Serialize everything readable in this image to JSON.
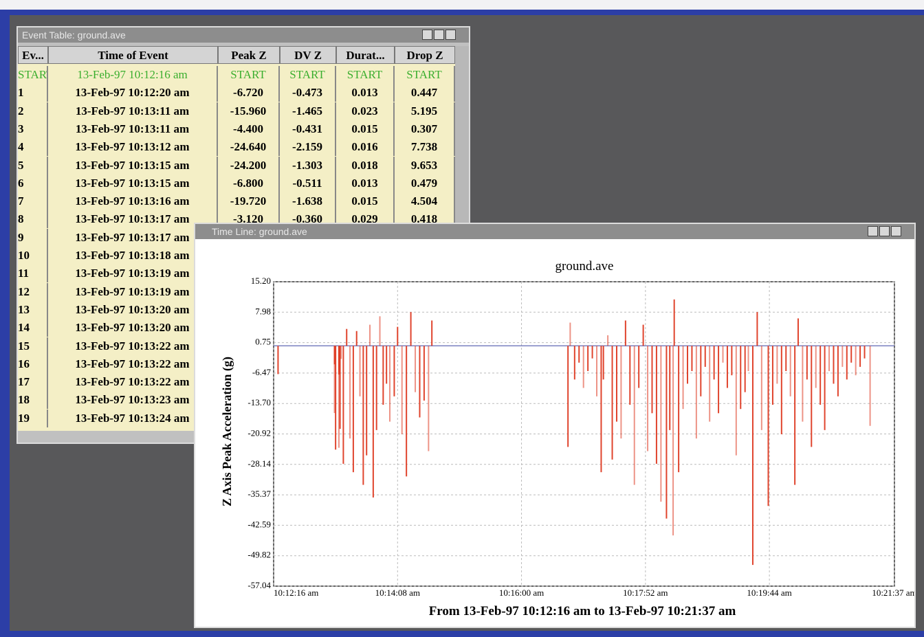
{
  "table_window": {
    "title": "Event Table: ground.ave",
    "columns": [
      "Ev...",
      "Time of Event",
      "Peak Z",
      "DV Z",
      "Durat...",
      "Drop Z"
    ],
    "rows": [
      [
        "START",
        "13-Feb-97 10:12:16 am",
        "START",
        "START",
        "START",
        "START"
      ],
      [
        "1",
        "13-Feb-97 10:12:20 am",
        "-6.720",
        "-0.473",
        "0.013",
        "0.447"
      ],
      [
        "2",
        "13-Feb-97 10:13:11 am",
        "-15.960",
        "-1.465",
        "0.023",
        "5.195"
      ],
      [
        "3",
        "13-Feb-97 10:13:11 am",
        "-4.400",
        "-0.431",
        "0.015",
        "0.307"
      ],
      [
        "4",
        "13-Feb-97 10:13:12 am",
        "-24.640",
        "-2.159",
        "0.016",
        "7.738"
      ],
      [
        "5",
        "13-Feb-97 10:13:15 am",
        "-24.200",
        "-1.303",
        "0.018",
        "9.653"
      ],
      [
        "6",
        "13-Feb-97 10:13:15 am",
        "-6.800",
        "-0.511",
        "0.013",
        "0.479"
      ],
      [
        "7",
        "13-Feb-97 10:13:16 am",
        "-19.720",
        "-1.638",
        "0.015",
        "4.504"
      ],
      [
        "8",
        "13-Feb-97 10:13:17 am",
        "-3.120",
        "-0.360",
        "0.029",
        "0.418"
      ],
      [
        "9",
        "13-Feb-97 10:13:17 am"
      ],
      [
        "10",
        "13-Feb-97 10:13:18 am"
      ],
      [
        "11",
        "13-Feb-97 10:13:19 am"
      ],
      [
        "12",
        "13-Feb-97 10:13:19 am"
      ],
      [
        "13",
        "13-Feb-97 10:13:20 am"
      ],
      [
        "14",
        "13-Feb-97 10:13:20 am"
      ],
      [
        "15",
        "13-Feb-97 10:13:22 am"
      ],
      [
        "16",
        "13-Feb-97 10:13:22 am"
      ],
      [
        "17",
        "13-Feb-97 10:13:22 am"
      ],
      [
        "18",
        "13-Feb-97 10:13:23 am"
      ],
      [
        "19",
        "13-Feb-97 10:13:24 am"
      ]
    ]
  },
  "chart_window": {
    "title": "Time Line: ground.ave",
    "footer": "From 13-Feb-97 10:12:16 am to 13-Feb-97 10:21:37 am"
  },
  "chart_data": {
    "type": "spike",
    "title": "ground.ave",
    "y_label": "Z Axis Peak Acceleration (g)",
    "color": "#de3a22",
    "grid": true,
    "xlim": [
      "10:12:16",
      "10:21:37"
    ],
    "xticks": [
      {
        "value": "10:12:16",
        "label": "10:12:16 am"
      },
      {
        "value": "10:14:08",
        "label": "10:14:08 am"
      },
      {
        "value": "10:16:00",
        "label": "10:16:00 am"
      },
      {
        "value": "10:17:52",
        "label": "10:17:52 am"
      },
      {
        "value": "10:19:44",
        "label": "10:19:44 am"
      },
      {
        "value": "10:21:37",
        "label": "10:21:37 am"
      }
    ],
    "ylim": [
      -57.04,
      15.2
    ],
    "yticks": [
      {
        "value": 15.2,
        "label": "15.20"
      },
      7.98,
      0.75,
      -6.47,
      {
        "value": -13.7,
        "label": "-13.70"
      },
      -20.92,
      -28.14,
      -35.37,
      -42.59,
      -49.82,
      -57.04
    ],
    "x": [
      "10:12:20",
      "10:13:11",
      "10:13:11",
      "10:13:12",
      "10:13:15",
      "10:13:15",
      "10:13:16",
      "10:13:17",
      "10:13:19",
      "10:13:22",
      "10:13:25",
      "10:13:28",
      "10:13:31",
      "10:13:34",
      "10:13:37",
      "10:13:40",
      "10:13:43",
      "10:13:46",
      "10:13:49",
      "10:13:52",
      "10:13:55",
      "10:13:58",
      "10:14:01",
      "10:14:05",
      "10:14:08",
      "10:14:12",
      "10:14:16",
      "10:14:20",
      "10:14:24",
      "10:14:28",
      "10:14:32",
      "10:14:36",
      "10:14:39",
      "10:16:42",
      "10:16:44",
      "10:16:48",
      "10:16:52",
      "10:16:56",
      "10:17:00",
      "10:17:04",
      "10:17:08",
      "10:17:12",
      "10:17:14",
      "10:17:18",
      "10:17:22",
      "10:17:26",
      "10:17:30",
      "10:17:34",
      "10:17:38",
      "10:17:42",
      "10:17:46",
      "10:17:50",
      "10:17:54",
      "10:17:58",
      "10:18:02",
      "10:18:06",
      "10:18:11",
      "10:18:14",
      "10:18:17",
      "10:18:18",
      "10:18:22",
      "10:18:26",
      "10:18:30",
      "10:18:34",
      "10:18:38",
      "10:18:42",
      "10:18:46",
      "10:18:50",
      "10:18:54",
      "10:18:58",
      "10:19:02",
      "10:19:06",
      "10:19:10",
      "10:19:14",
      "10:19:18",
      "10:19:22",
      "10:19:25",
      "10:19:29",
      "10:19:33",
      "10:19:37",
      "10:19:43",
      "10:19:47",
      "10:19:51",
      "10:19:55",
      "10:19:59",
      "10:20:03",
      "10:20:07",
      "10:20:10",
      "10:20:14",
      "10:20:18",
      "10:20:22",
      "10:20:26",
      "10:20:30",
      "10:20:34",
      "10:20:38",
      "10:20:42",
      "10:20:46",
      "10:20:50",
      "10:20:54",
      "10:20:58",
      "10:21:02",
      "10:21:06",
      "10:21:10",
      "10:21:15"
    ],
    "values": [
      -6.72,
      -15.96,
      -4.4,
      -24.64,
      -24.2,
      -6.8,
      -19.72,
      -3.12,
      -28,
      4,
      -22,
      -30,
      3.5,
      -12,
      -33,
      -26,
      5,
      -36,
      -20,
      7,
      -14,
      -9,
      -18,
      -12,
      4.5,
      -21,
      -31,
      8,
      -11,
      -17,
      -13,
      -25,
      6,
      -24,
      5.5,
      -8,
      -4,
      -10,
      -6,
      -3,
      -12,
      -30,
      -8,
      2.5,
      -27,
      -18,
      -22,
      6,
      -14,
      -33,
      -10,
      5,
      -25,
      -16,
      -28,
      -37,
      -41,
      -20,
      -45,
      11,
      -30,
      -15,
      -9,
      -6,
      -22,
      -12,
      -5,
      -18,
      -8,
      -16,
      -4,
      -10,
      -7,
      -26,
      -15,
      -11,
      -6,
      -52,
      8,
      -20,
      -38,
      -14,
      -9,
      -21,
      -6,
      -12,
      -33,
      6.5,
      -18,
      -8,
      -24,
      -10,
      -14,
      -20,
      -6,
      -9,
      -12,
      -5,
      -8,
      -4,
      -7,
      -5,
      -3,
      -19
    ]
  }
}
